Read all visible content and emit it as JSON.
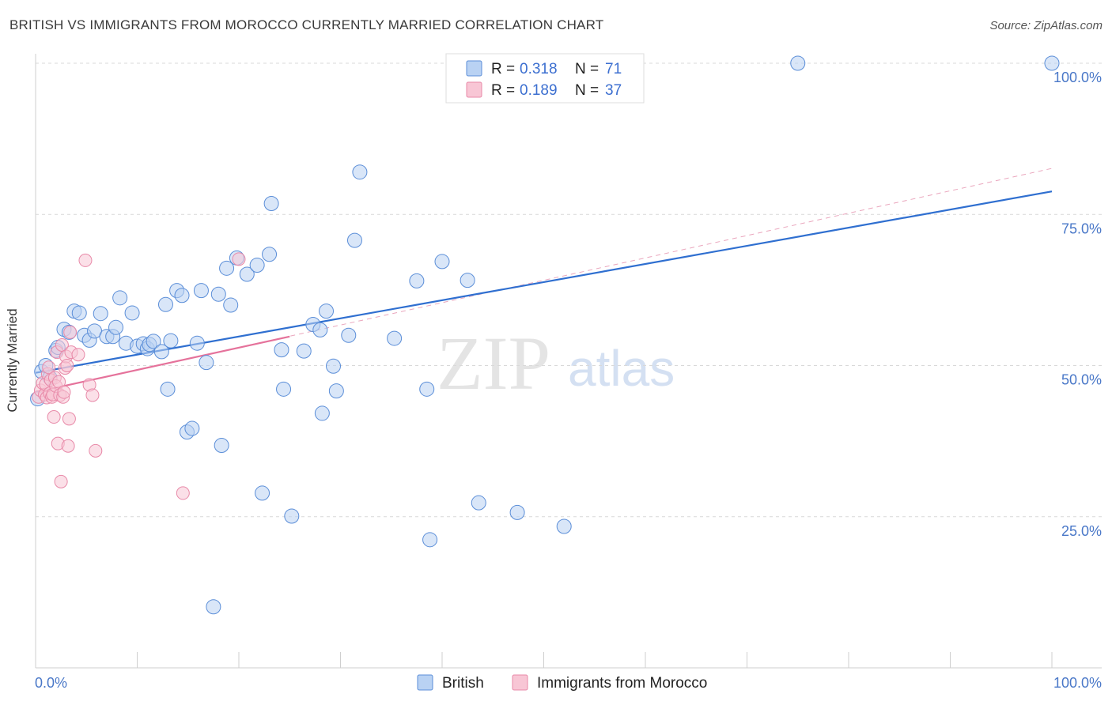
{
  "chart_data": {
    "type": "scatter",
    "title": "BRITISH VS IMMIGRANTS FROM MOROCCO CURRENTLY MARRIED CORRELATION CHART",
    "source": "Source: ZipAtlas.com",
    "xlabel": "",
    "ylabel": "Currently Married",
    "xlim": [
      0,
      100
    ],
    "ylim": [
      0,
      100
    ],
    "x_tick_labels": [
      "0.0%",
      "100.0%"
    ],
    "y_ticks": [
      25,
      50,
      75,
      100
    ],
    "y_tick_labels": [
      "25.0%",
      "50.0%",
      "75.0%",
      "100.0%"
    ],
    "watermark": {
      "zip": "ZIP",
      "atlas": "atlas"
    },
    "colors": {
      "british_fill": "#b9d2f3",
      "british_stroke": "#5b8ed8",
      "british_line": "#2f6fd0",
      "morocco_fill": "#f8c6d5",
      "morocco_stroke": "#e889a8",
      "morocco_line": "#e5729b"
    },
    "stats_legend": [
      {
        "r_label": "R =",
        "r_value": "0.318",
        "n_label": "N =",
        "n_value": "71"
      },
      {
        "r_label": "R =",
        "r_value": "0.189",
        "n_label": "N =",
        "n_value": "37"
      }
    ],
    "series": [
      {
        "name": "British",
        "trend": {
          "x": [
            0,
            100
          ],
          "y": [
            48.8,
            78.8
          ]
        },
        "points": [
          {
            "x": 0.2,
            "y": 44.5
          },
          {
            "x": 0.6,
            "y": 49
          },
          {
            "x": 1.0,
            "y": 50
          },
          {
            "x": 1.4,
            "y": 48
          },
          {
            "x": 2.0,
            "y": 52.5
          },
          {
            "x": 2.2,
            "y": 53
          },
          {
            "x": 2.8,
            "y": 56
          },
          {
            "x": 3.3,
            "y": 55.5
          },
          {
            "x": 3.8,
            "y": 59
          },
          {
            "x": 4.3,
            "y": 58.7
          },
          {
            "x": 4.8,
            "y": 55
          },
          {
            "x": 5.3,
            "y": 54.2
          },
          {
            "x": 5.8,
            "y": 55.7
          },
          {
            "x": 6.4,
            "y": 58.6
          },
          {
            "x": 7.0,
            "y": 54.8
          },
          {
            "x": 7.6,
            "y": 54.8
          },
          {
            "x": 7.9,
            "y": 56.3
          },
          {
            "x": 8.3,
            "y": 61.2
          },
          {
            "x": 8.9,
            "y": 53.7
          },
          {
            "x": 9.5,
            "y": 58.7
          },
          {
            "x": 10.0,
            "y": 53.2
          },
          {
            "x": 10.6,
            "y": 53.6
          },
          {
            "x": 11.0,
            "y": 52.8
          },
          {
            "x": 11.2,
            "y": 53.5
          },
          {
            "x": 11.6,
            "y": 54
          },
          {
            "x": 12.4,
            "y": 52.3
          },
          {
            "x": 12.8,
            "y": 60.1
          },
          {
            "x": 13.0,
            "y": 46.1
          },
          {
            "x": 13.3,
            "y": 54.1
          },
          {
            "x": 13.9,
            "y": 62.4
          },
          {
            "x": 14.4,
            "y": 61.6
          },
          {
            "x": 14.9,
            "y": 39
          },
          {
            "x": 15.4,
            "y": 39.6
          },
          {
            "x": 15.9,
            "y": 53.7
          },
          {
            "x": 16.3,
            "y": 62.4
          },
          {
            "x": 16.8,
            "y": 50.5
          },
          {
            "x": 17.5,
            "y": 10.1
          },
          {
            "x": 18.0,
            "y": 61.8
          },
          {
            "x": 18.3,
            "y": 36.8
          },
          {
            "x": 18.8,
            "y": 66.1
          },
          {
            "x": 19.2,
            "y": 60
          },
          {
            "x": 19.8,
            "y": 67.8
          },
          {
            "x": 20.8,
            "y": 65.1
          },
          {
            "x": 21.8,
            "y": 66.6
          },
          {
            "x": 22.3,
            "y": 28.9
          },
          {
            "x": 23.0,
            "y": 68.4
          },
          {
            "x": 23.2,
            "y": 76.8
          },
          {
            "x": 24.2,
            "y": 52.6
          },
          {
            "x": 24.4,
            "y": 46.1
          },
          {
            "x": 25.2,
            "y": 25.1
          },
          {
            "x": 26.4,
            "y": 52.4
          },
          {
            "x": 27.3,
            "y": 56.8
          },
          {
            "x": 28.0,
            "y": 55.9
          },
          {
            "x": 28.2,
            "y": 42.1
          },
          {
            "x": 28.6,
            "y": 59
          },
          {
            "x": 29.3,
            "y": 49.9
          },
          {
            "x": 29.6,
            "y": 45.8
          },
          {
            "x": 30.8,
            "y": 55
          },
          {
            "x": 31.4,
            "y": 70.7
          },
          {
            "x": 31.9,
            "y": 82
          },
          {
            "x": 35.3,
            "y": 54.5
          },
          {
            "x": 37.5,
            "y": 64
          },
          {
            "x": 38.5,
            "y": 46.1
          },
          {
            "x": 38.8,
            "y": 21.2
          },
          {
            "x": 40.0,
            "y": 67.2
          },
          {
            "x": 42.5,
            "y": 64.1
          },
          {
            "x": 43.6,
            "y": 27.3
          },
          {
            "x": 47.4,
            "y": 25.7
          },
          {
            "x": 52.0,
            "y": 23.4
          },
          {
            "x": 75.0,
            "y": 100
          },
          {
            "x": 100.0,
            "y": 100
          }
        ]
      },
      {
        "name": "Immigrants from Morocco",
        "trend": {
          "x": [
            0,
            25
          ],
          "y": [
            45.6,
            54.8
          ]
        },
        "trend_extension": {
          "x": [
            0,
            100
          ],
          "y": [
            45.6,
            82.6
          ]
        },
        "points": [
          {
            "x": 0.3,
            "y": 44.8
          },
          {
            "x": 0.5,
            "y": 45.9
          },
          {
            "x": 0.7,
            "y": 47.1
          },
          {
            "x": 0.9,
            "y": 45.2
          },
          {
            "x": 1.0,
            "y": 46.9
          },
          {
            "x": 1.1,
            "y": 44.7
          },
          {
            "x": 1.2,
            "y": 48.6
          },
          {
            "x": 1.3,
            "y": 49.7
          },
          {
            "x": 1.4,
            "y": 45.4
          },
          {
            "x": 1.5,
            "y": 47.6
          },
          {
            "x": 1.6,
            "y": 44.8
          },
          {
            "x": 1.7,
            "y": 45.2
          },
          {
            "x": 1.8,
            "y": 41.5
          },
          {
            "x": 1.9,
            "y": 48
          },
          {
            "x": 2.0,
            "y": 46.6
          },
          {
            "x": 2.1,
            "y": 52.2
          },
          {
            "x": 2.2,
            "y": 37.1
          },
          {
            "x": 2.3,
            "y": 47.3
          },
          {
            "x": 2.4,
            "y": 45.1
          },
          {
            "x": 2.5,
            "y": 30.8
          },
          {
            "x": 2.6,
            "y": 53.4
          },
          {
            "x": 2.7,
            "y": 44.8
          },
          {
            "x": 2.8,
            "y": 45.6
          },
          {
            "x": 2.9,
            "y": 49.6
          },
          {
            "x": 3.0,
            "y": 51.5
          },
          {
            "x": 3.1,
            "y": 50
          },
          {
            "x": 3.2,
            "y": 36.7
          },
          {
            "x": 3.3,
            "y": 41.2
          },
          {
            "x": 3.4,
            "y": 55.5
          },
          {
            "x": 3.5,
            "y": 52.2
          },
          {
            "x": 4.2,
            "y": 51.8
          },
          {
            "x": 4.9,
            "y": 67.4
          },
          {
            "x": 5.3,
            "y": 46.8
          },
          {
            "x": 5.6,
            "y": 45.1
          },
          {
            "x": 5.9,
            "y": 35.9
          },
          {
            "x": 14.5,
            "y": 28.9
          },
          {
            "x": 20.0,
            "y": 67.6
          }
        ]
      }
    ]
  }
}
